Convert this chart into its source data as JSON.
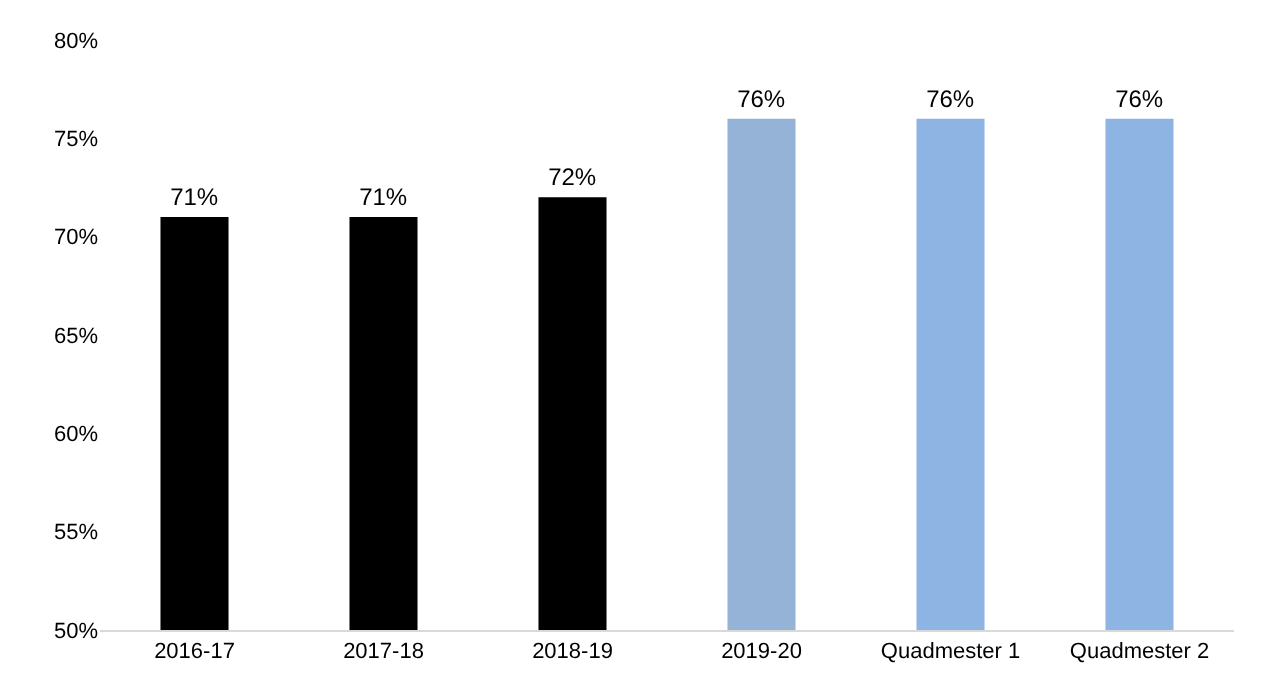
{
  "chart_data": {
    "type": "bar",
    "categories": [
      "2016-17",
      "2017-18",
      "2018-19",
      "2019-20",
      "Quadmester 1",
      "Quadmester 2"
    ],
    "values": [
      71,
      71,
      72,
      76,
      76,
      76
    ],
    "colors": [
      "#000000",
      "#000000",
      "#000000",
      "#95b3d7",
      "#8eb4e3",
      "#8eb4e3"
    ],
    "value_labels": [
      "71%",
      "71%",
      "72%",
      "76%",
      "76%",
      "76%"
    ],
    "ylim": [
      50,
      80
    ],
    "yticks": [
      {
        "value": 50,
        "label": "50%"
      },
      {
        "value": 55,
        "label": "55%"
      },
      {
        "value": 60,
        "label": "60%"
      },
      {
        "value": 65,
        "label": "65%"
      },
      {
        "value": 70,
        "label": "70%"
      },
      {
        "value": 75,
        "label": "75%"
      },
      {
        "value": 80,
        "label": "80%"
      }
    ]
  }
}
